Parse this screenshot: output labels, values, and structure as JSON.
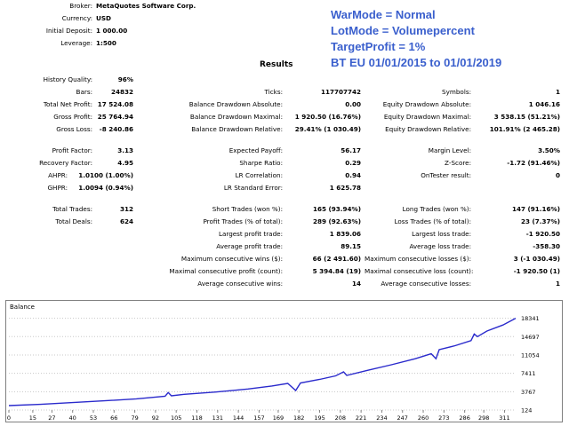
{
  "header": {
    "broker": {
      "label": "Broker:",
      "value": "MetaQuotes Software Corp."
    },
    "currency": {
      "label": "Currency:",
      "value": "USD"
    },
    "deposit": {
      "label": "Initial Deposit:",
      "value": "1 000.00"
    },
    "leverage": {
      "label": "Leverage:",
      "value": "1:500"
    }
  },
  "notes": {
    "line1": "WarMode = Normal",
    "line2": "LotMode = Volumepercent",
    "line3": "TargetProfit = 1%",
    "line4": "BT EU 01/01/2015 to 01/01/2019"
  },
  "results_title": "Results",
  "col1": [
    {
      "label": "History Quality:",
      "value": "96%"
    },
    {
      "label": "Bars:",
      "value": "24832"
    },
    {
      "label": "Total Net Profit:",
      "value": "17 524.08"
    },
    {
      "label": "Gross Profit:",
      "value": "25 764.94"
    },
    {
      "label": "Gross Loss:",
      "value": "-8 240.86"
    },
    {
      "label": "Profit Factor:",
      "value": "3.13"
    },
    {
      "label": "Recovery Factor:",
      "value": "4.95"
    },
    {
      "label": "AHPR:",
      "value": "1.0100 (1.00%)"
    },
    {
      "label": "GHPR:",
      "value": "1.0094 (0.94%)"
    },
    {
      "label": "Total Trades:",
      "value": "312"
    },
    {
      "label": "Total Deals:",
      "value": "624"
    }
  ],
  "col2": [
    {
      "label": "Ticks:",
      "value": "117707742"
    },
    {
      "label": "Balance Drawdown Absolute:",
      "value": "0.00"
    },
    {
      "label": "Balance Drawdown Maximal:",
      "value": "1 920.50 (16.76%)"
    },
    {
      "label": "Balance Drawdown Relative:",
      "value": "29.41% (1 030.49)"
    },
    {
      "label": "Expected Payoff:",
      "value": "56.17"
    },
    {
      "label": "Sharpe Ratio:",
      "value": "0.29"
    },
    {
      "label": "LR Correlation:",
      "value": "0.94"
    },
    {
      "label": "LR Standard Error:",
      "value": "1 625.78"
    },
    {
      "label": "Short Trades (won %):",
      "value": "165 (93.94%)"
    },
    {
      "label": "Profit Trades (% of total):",
      "value": "289 (92.63%)"
    },
    {
      "label": "Largest profit trade:",
      "value": "1 839.06"
    },
    {
      "label": "Average profit trade:",
      "value": "89.15"
    },
    {
      "label": "Maximum consecutive wins ($):",
      "value": "66 (2 491.60)"
    },
    {
      "label": "Maximal consecutive profit (count):",
      "value": "5 394.84 (19)"
    },
    {
      "label": "Average consecutive wins:",
      "value": "14"
    }
  ],
  "col3": [
    {
      "label": "Symbols:",
      "value": "1"
    },
    {
      "label": "Equity Drawdown Absolute:",
      "value": "1 046.16"
    },
    {
      "label": "Equity Drawdown Maximal:",
      "value": "3 538.15 (51.21%)"
    },
    {
      "label": "Equity Drawdown Relative:",
      "value": "101.91% (2 465.28)"
    },
    {
      "label": "Margin Level:",
      "value": "3.50%"
    },
    {
      "label": "Z-Score:",
      "value": "-1.72 (91.46%)"
    },
    {
      "label": "OnTester result:",
      "value": "0"
    },
    {
      "label": "Long Trades (won %):",
      "value": "147 (91.16%)"
    },
    {
      "label": "Loss Trades (% of total):",
      "value": "23 (7.37%)"
    },
    {
      "label": "Largest loss trade:",
      "value": "-1 920.50"
    },
    {
      "label": "Average loss trade:",
      "value": "-358.30"
    },
    {
      "label": "Maximum consecutive losses ($):",
      "value": "3 (-1 030.49)"
    },
    {
      "label": "Maximal consecutive loss (count):",
      "value": "-1 920.50 (1)"
    },
    {
      "label": "Average consecutive losses:",
      "value": "1"
    }
  ],
  "chart_data": {
    "type": "line",
    "title": "Balance",
    "line_color": "#2a2acc",
    "ylim": [
      124,
      19500
    ],
    "xlim": [
      0,
      318
    ],
    "y_ticks": [
      124,
      3767,
      7411,
      11054,
      14697,
      18341
    ],
    "x_ticks": [
      0,
      15,
      27,
      40,
      53,
      66,
      79,
      92,
      105,
      118,
      131,
      144,
      157,
      169,
      182,
      195,
      208,
      221,
      234,
      247,
      260,
      273,
      286,
      298,
      311
    ],
    "series": [
      {
        "name": "Balance",
        "points": [
          [
            0,
            1000
          ],
          [
            20,
            1250
          ],
          [
            40,
            1600
          ],
          [
            60,
            1950
          ],
          [
            80,
            2350
          ],
          [
            98,
            2850
          ],
          [
            100,
            3600
          ],
          [
            102,
            2950
          ],
          [
            110,
            3250
          ],
          [
            130,
            3700
          ],
          [
            150,
            4300
          ],
          [
            165,
            4900
          ],
          [
            175,
            5400
          ],
          [
            180,
            4000
          ],
          [
            183,
            5500
          ],
          [
            195,
            6200
          ],
          [
            205,
            6900
          ],
          [
            210,
            7700
          ],
          [
            212,
            7000
          ],
          [
            225,
            8000
          ],
          [
            240,
            9100
          ],
          [
            255,
            10300
          ],
          [
            265,
            11300
          ],
          [
            268,
            10300
          ],
          [
            270,
            12100
          ],
          [
            280,
            12900
          ],
          [
            290,
            13900
          ],
          [
            292,
            15200
          ],
          [
            294,
            14700
          ],
          [
            300,
            15800
          ],
          [
            310,
            17000
          ],
          [
            318,
            18341
          ]
        ]
      }
    ]
  }
}
